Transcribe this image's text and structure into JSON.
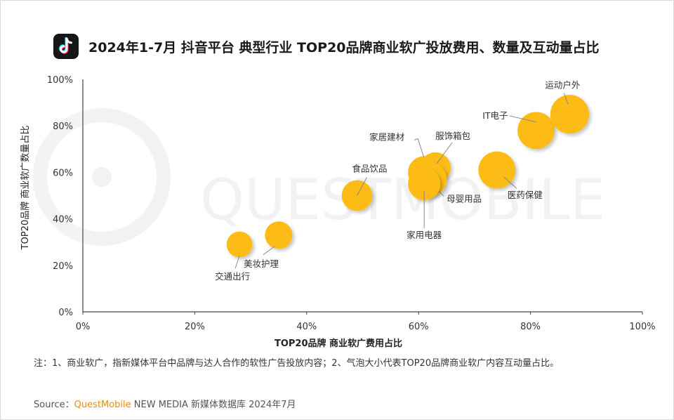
{
  "title": "2024年1-7月 抖音平台 典型行业 TOP20品牌商业软广投放费用、数量及互动量占比",
  "note": "注：1、商业软广，指新媒体平台中品牌与达人合作的软性广告投放内容；2、气泡大小代表TOP20品牌商业软广内容互动量占比。",
  "source": {
    "prefix": "Source：",
    "brand": "QuestMobile",
    "rest": " NEW MEDIA 新媒体数据库 2024年7月"
  },
  "watermark": "QUESTMOBILE",
  "colors": {
    "bubble": "#FDBB14",
    "axis": "#444444",
    "brand": "#F08A00",
    "icon_bg": "#161616"
  },
  "icon": "douyin-logo-icon",
  "chart_data": {
    "type": "scatter",
    "variant": "bubble",
    "title": "2024年1-7月 抖音平台 典型行业 TOP20品牌商业软广投放费用、数量及互动量占比",
    "xlabel": "TOP20品牌 商业软广费用占比",
    "ylabel": "TOP20品牌 商业软广数量占比",
    "xlim": [
      0,
      100
    ],
    "ylim": [
      0,
      100
    ],
    "x_ticks": [
      "0%",
      "20%",
      "40%",
      "60%",
      "80%",
      "100%"
    ],
    "y_ticks": [
      "0%",
      "20%",
      "40%",
      "60%",
      "80%",
      "100%"
    ],
    "grid": false,
    "size_meaning": "互动量占比",
    "points": [
      {
        "label": "交通出行",
        "x": 28,
        "y": 29,
        "size": 0.8
      },
      {
        "label": "美妆护理",
        "x": 35,
        "y": 33,
        "size": 0.85
      },
      {
        "label": "食品饮品",
        "x": 49,
        "y": 50,
        "size": 0.95
      },
      {
        "label": "家居建材",
        "x": 61,
        "y": 60,
        "size": 1.0
      },
      {
        "label": "服饰箱包",
        "x": 63,
        "y": 62,
        "size": 0.95
      },
      {
        "label": "母婴用品",
        "x": 62,
        "y": 57,
        "size": 1.05
      },
      {
        "label": "家用电器",
        "x": 61,
        "y": 55,
        "size": 1.0
      },
      {
        "label": "医药保健",
        "x": 74,
        "y": 61,
        "size": 1.15
      },
      {
        "label": "IT电子",
        "x": 81,
        "y": 78,
        "size": 1.15
      },
      {
        "label": "运动户外",
        "x": 87,
        "y": 85,
        "size": 1.2
      }
    ]
  }
}
